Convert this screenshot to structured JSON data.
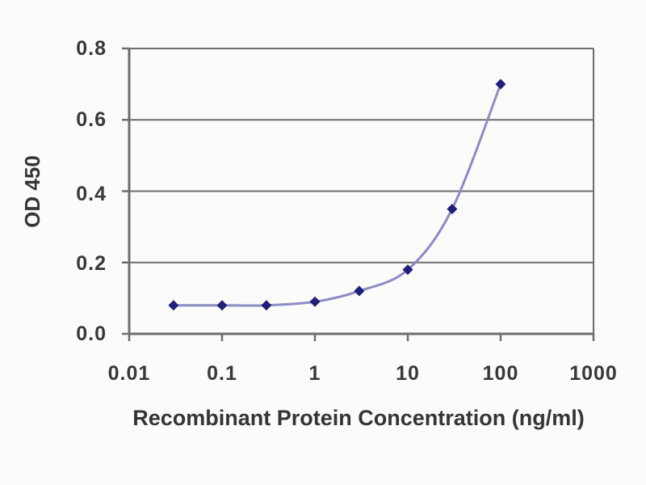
{
  "chart_data": {
    "type": "line",
    "title": "",
    "xlabel": "Recombinant Protein Concentration (ng/ml)",
    "ylabel": "OD 450",
    "x_scale": "log",
    "xlim": [
      0.01,
      1000
    ],
    "ylim": [
      0,
      0.8
    ],
    "x": [
      0.03,
      0.1,
      0.3,
      1,
      3,
      10,
      30,
      100
    ],
    "y": [
      0.08,
      0.08,
      0.08,
      0.09,
      0.12,
      0.18,
      0.35,
      0.7
    ],
    "x_ticks": [
      "0.01",
      "0.1",
      "1",
      "10",
      "100",
      "1000"
    ],
    "x_tick_values": [
      0.01,
      0.1,
      1,
      10,
      100,
      1000
    ],
    "y_ticks": [
      "0.8",
      "0.6",
      "0.4",
      "0.2",
      "0.0"
    ],
    "y_tick_values": [
      0.8,
      0.6,
      0.4,
      0.2,
      0.0
    ],
    "grid": "horizontal",
    "legend": "none",
    "marker_shape": "diamond",
    "colors": {
      "line": "#8c8cc4",
      "marker": "#20207a",
      "axis": "#6d6d6d",
      "text": "#383838",
      "background": "#fbfbfa"
    }
  }
}
